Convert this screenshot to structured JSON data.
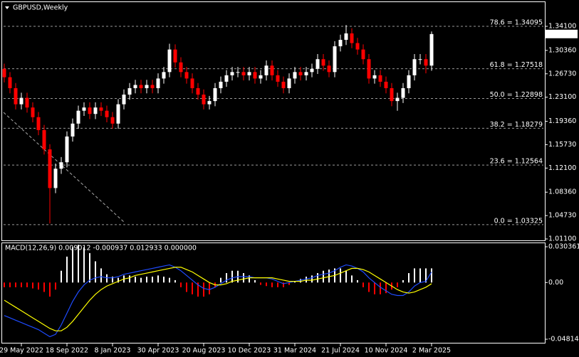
{
  "chart_data": [
    {
      "type": "candlestick",
      "title": "GBPUSD,Weekly",
      "categories": [
        null,
        null,
        null,
        "29 May 2022",
        null,
        null,
        null,
        null,
        null,
        null,
        null,
        "18 Sep 2022",
        null,
        null,
        null,
        null,
        null,
        null,
        null,
        "8 Jan 2023",
        null,
        null,
        null,
        null,
        null,
        null,
        null,
        "30 Apr 2023",
        null,
        null,
        null,
        null,
        null,
        null,
        null,
        "20 Aug 2023",
        null,
        null,
        null,
        null,
        null,
        null,
        null,
        "10 Dec 2023",
        null,
        null,
        null,
        null,
        null,
        null,
        null,
        "31 Mar 2024",
        null,
        null,
        null,
        null,
        null,
        null,
        null,
        "21 Jul 2024",
        null,
        null,
        null,
        null,
        null,
        null,
        null,
        "10 Nov 2024",
        null,
        null,
        null,
        null,
        null,
        null,
        null,
        "2 Mar 2025"
      ],
      "open": [
        1.275,
        1.262,
        1.245,
        1.22,
        1.23,
        1.215,
        1.2,
        1.18,
        1.15,
        1.09,
        1.12,
        1.13,
        1.17,
        1.19,
        1.21,
        1.215,
        1.205,
        1.215,
        1.21,
        1.2,
        1.19,
        1.22,
        1.235,
        1.245,
        1.25,
        1.245,
        1.25,
        1.245,
        1.26,
        1.27,
        1.305,
        1.285,
        1.27,
        1.26,
        1.245,
        1.235,
        1.22,
        1.225,
        1.245,
        1.255,
        1.265,
        1.27,
        1.27,
        1.265,
        1.27,
        1.26,
        1.265,
        1.28,
        1.265,
        1.255,
        1.245,
        1.26,
        1.27,
        1.265,
        1.27,
        1.275,
        1.29,
        1.28,
        1.27,
        1.31,
        1.32,
        1.33,
        1.315,
        1.305,
        1.29,
        1.26,
        1.265,
        1.255,
        1.245,
        1.225,
        1.23,
        1.245,
        1.265,
        1.29,
        1.29,
        1.28
      ],
      "high": [
        1.283,
        1.27,
        1.253,
        1.238,
        1.238,
        1.223,
        1.208,
        1.188,
        1.158,
        1.128,
        1.138,
        1.178,
        1.198,
        1.218,
        1.223,
        1.223,
        1.223,
        1.223,
        1.218,
        1.208,
        1.228,
        1.243,
        1.253,
        1.258,
        1.258,
        1.258,
        1.258,
        1.268,
        1.278,
        1.314,
        1.313,
        1.293,
        1.278,
        1.268,
        1.253,
        1.243,
        1.233,
        1.253,
        1.263,
        1.273,
        1.278,
        1.278,
        1.278,
        1.278,
        1.278,
        1.273,
        1.288,
        1.288,
        1.273,
        1.263,
        1.268,
        1.278,
        1.278,
        1.278,
        1.283,
        1.298,
        1.298,
        1.288,
        1.318,
        1.328,
        1.343,
        1.338,
        1.323,
        1.313,
        1.298,
        1.273,
        1.273,
        1.263,
        1.253,
        1.238,
        1.253,
        1.273,
        1.298,
        1.298,
        1.298,
        1.333
      ],
      "low": [
        1.254,
        1.237,
        1.212,
        1.212,
        1.207,
        1.192,
        1.172,
        1.142,
        1.035,
        1.082,
        1.112,
        1.122,
        1.162,
        1.182,
        1.202,
        1.197,
        1.197,
        1.202,
        1.192,
        1.182,
        1.182,
        1.212,
        1.227,
        1.237,
        1.237,
        1.237,
        1.237,
        1.237,
        1.252,
        1.262,
        1.277,
        1.262,
        1.252,
        1.237,
        1.227,
        1.212,
        1.212,
        1.217,
        1.237,
        1.247,
        1.257,
        1.262,
        1.257,
        1.257,
        1.252,
        1.252,
        1.257,
        1.257,
        1.247,
        1.237,
        1.237,
        1.252,
        1.257,
        1.257,
        1.262,
        1.267,
        1.272,
        1.262,
        1.262,
        1.302,
        1.312,
        1.307,
        1.297,
        1.282,
        1.252,
        1.252,
        1.247,
        1.237,
        1.217,
        1.21,
        1.222,
        1.237,
        1.257,
        1.282,
        1.268,
        1.272
      ],
      "close": [
        1.262,
        1.245,
        1.22,
        1.23,
        1.215,
        1.2,
        1.18,
        1.15,
        1.09,
        1.12,
        1.13,
        1.17,
        1.19,
        1.21,
        1.215,
        1.205,
        1.215,
        1.21,
        1.2,
        1.19,
        1.22,
        1.235,
        1.245,
        1.25,
        1.245,
        1.25,
        1.245,
        1.26,
        1.27,
        1.305,
        1.285,
        1.27,
        1.26,
        1.245,
        1.235,
        1.22,
        1.225,
        1.245,
        1.255,
        1.265,
        1.27,
        1.27,
        1.265,
        1.27,
        1.26,
        1.265,
        1.28,
        1.265,
        1.255,
        1.245,
        1.26,
        1.27,
        1.265,
        1.27,
        1.275,
        1.29,
        1.28,
        1.27,
        1.31,
        1.32,
        1.33,
        1.315,
        1.305,
        1.29,
        1.26,
        1.265,
        1.255,
        1.245,
        1.225,
        1.23,
        1.245,
        1.265,
        1.29,
        1.29,
        1.28,
        1.329
      ],
      "up_color": "#ffffff",
      "down_color": "#ff0000",
      "ylim": [
        1.011,
        1.341
      ],
      "yticks": [
        {
          "value": 1.341,
          "label": "1.34100"
        },
        {
          "value": 1.3036,
          "label": "1.30360"
        },
        {
          "value": 1.2673,
          "label": "1.26730"
        },
        {
          "value": 1.231,
          "label": "1.23100"
        },
        {
          "value": 1.1936,
          "label": "1.19360"
        },
        {
          "value": 1.1573,
          "label": "1.15730"
        },
        {
          "value": 1.121,
          "label": "1.12100"
        },
        {
          "value": 1.0836,
          "label": "1.08360"
        },
        {
          "value": 1.0473,
          "label": "1.04730"
        },
        {
          "value": 1.011,
          "label": "1.01100"
        }
      ],
      "levels": [
        {
          "label": "78.6 = 1.34095",
          "value": 1.34095
        },
        {
          "label": "61.8 = 1.27518",
          "value": 1.27518
        },
        {
          "label": "50.0 = 1.22898",
          "value": 1.22898
        },
        {
          "label": "38.2 = 1.18279",
          "value": 1.18279
        },
        {
          "label": "23.6 = 1.12564",
          "value": 1.12564
        },
        {
          "label": "0.0 = 1.03325",
          "value": 1.03325
        }
      ],
      "last_price": 1.32909
    },
    {
      "type": "macd",
      "title": "MACD(12,26,9) 0.009012 -0.000937 0.012933 0.000000",
      "histogram": {
        "up_color": "#ffffff",
        "down_color": "#ff0000",
        "values": [
          -0.004,
          -0.004,
          -0.004,
          -0.004,
          -0.004,
          -0.005,
          -0.006,
          -0.008,
          -0.012,
          -0.006,
          0.01,
          0.022,
          0.03,
          0.032,
          0.03,
          0.025,
          0.018,
          0.012,
          0.007,
          0.005,
          0.004,
          0.006,
          0.006,
          0.005,
          0.004,
          0.005,
          0.005,
          0.006,
          0.005,
          0.004,
          0.002,
          -0.004,
          -0.008,
          -0.01,
          -0.012,
          -0.012,
          -0.01,
          -0.004,
          0.004,
          0.008,
          0.01,
          0.01,
          0.008,
          0.006,
          0.002,
          -0.002,
          -0.003,
          -0.004,
          -0.004,
          -0.004,
          -0.002,
          0.001,
          0.003,
          0.005,
          0.006,
          0.008,
          0.01,
          0.011,
          0.012,
          0.012,
          0.01,
          0.006,
          0.002,
          -0.004,
          -0.008,
          -0.01,
          -0.01,
          -0.009,
          -0.006,
          -0.004,
          0.002,
          0.008,
          0.012,
          0.012,
          0.012,
          0.012
        ]
      },
      "series": [
        {
          "color": "#1e4bff",
          "values": [
            -0.028,
            -0.03,
            -0.032,
            -0.034,
            -0.036,
            -0.038,
            -0.04,
            -0.043,
            -0.046,
            -0.044,
            -0.036,
            -0.026,
            -0.016,
            -0.008,
            -0.002,
            0.002,
            0.004,
            0.005,
            0.004,
            0.004,
            0.005,
            0.007,
            0.008,
            0.009,
            0.01,
            0.011,
            0.012,
            0.013,
            0.014,
            0.015,
            0.013,
            0.01,
            0.006,
            0.002,
            -0.002,
            -0.005,
            -0.006,
            -0.004,
            -0.001,
            0.002,
            0.004,
            0.005,
            0.005,
            0.005,
            0.004,
            0.004,
            0.004,
            0.003,
            0.001,
            -0.001,
            0.0,
            0.001,
            0.002,
            0.003,
            0.004,
            0.006,
            0.007,
            0.008,
            0.01,
            0.013,
            0.015,
            0.014,
            0.012,
            0.009,
            0.004,
            0.0,
            -0.004,
            -0.007,
            -0.01,
            -0.011,
            -0.011,
            -0.008,
            -0.003,
            0.0,
            0.001,
            0.009
          ]
        },
        {
          "color": "#ffff00",
          "values": [
            -0.015,
            -0.018,
            -0.021,
            -0.024,
            -0.027,
            -0.03,
            -0.033,
            -0.036,
            -0.039,
            -0.041,
            -0.041,
            -0.038,
            -0.033,
            -0.027,
            -0.021,
            -0.015,
            -0.01,
            -0.006,
            -0.003,
            -0.001,
            0.001,
            0.003,
            0.004,
            0.006,
            0.007,
            0.008,
            0.009,
            0.01,
            0.011,
            0.012,
            0.013,
            0.013,
            0.011,
            0.009,
            0.006,
            0.003,
            0.0,
            -0.002,
            -0.002,
            -0.001,
            0.001,
            0.002,
            0.003,
            0.004,
            0.004,
            0.004,
            0.004,
            0.004,
            0.003,
            0.002,
            0.001,
            0.001,
            0.001,
            0.002,
            0.002,
            0.003,
            0.004,
            0.005,
            0.006,
            0.008,
            0.01,
            0.012,
            0.012,
            0.011,
            0.009,
            0.006,
            0.003,
            0.0,
            -0.003,
            -0.006,
            -0.008,
            -0.009,
            -0.008,
            -0.006,
            -0.004,
            -0.001
          ]
        }
      ],
      "ylim": [
        -0.048141,
        0.030361
      ],
      "yticks": [
        0.030361,
        {
          "value": 0,
          "label": "0.00"
        },
        -0.048141
      ]
    }
  ]
}
